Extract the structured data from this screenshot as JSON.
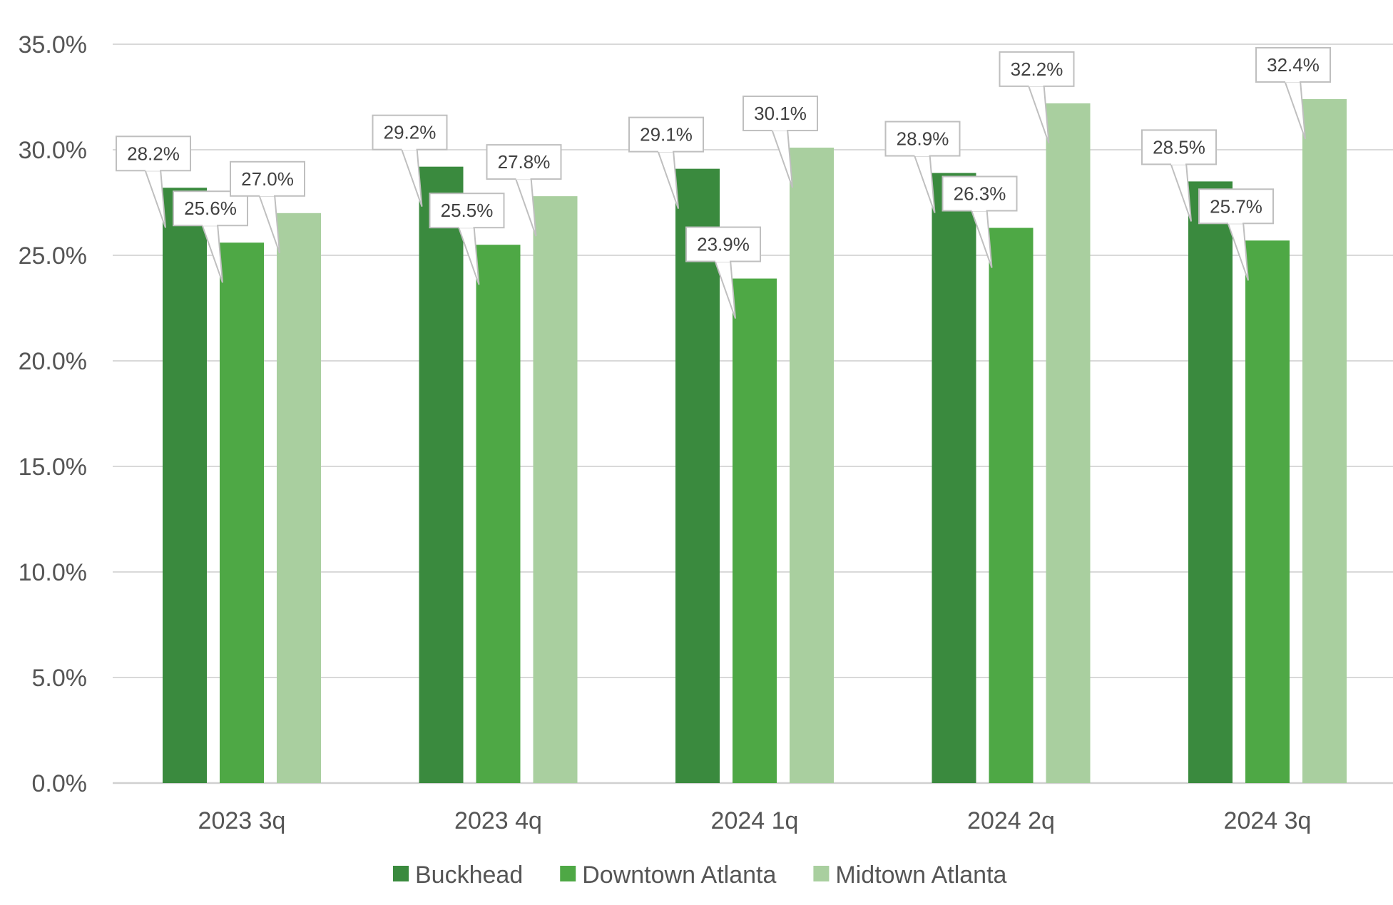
{
  "chart_data": {
    "type": "bar",
    "categories": [
      "2023 3q",
      "2023 4q",
      "2024 1q",
      "2024 2q",
      "2024 3q"
    ],
    "series": [
      {
        "name": "Buckhead",
        "color": "#3a8a3e",
        "values": [
          28.2,
          29.2,
          29.1,
          28.9,
          28.5
        ],
        "labels": [
          "28.2%",
          "29.2%",
          "29.1%",
          "28.9%",
          "28.5%"
        ]
      },
      {
        "name": "Downtown Atlanta",
        "color": "#4ea845",
        "values": [
          25.6,
          25.5,
          23.9,
          26.3,
          25.7
        ],
        "labels": [
          "25.6%",
          "25.5%",
          "23.9%",
          "26.3%",
          "25.7%"
        ]
      },
      {
        "name": "Midtown Atlanta",
        "color": "#a9cf9f",
        "values": [
          27.0,
          27.8,
          30.1,
          32.2,
          32.4
        ],
        "labels": [
          "27.0%",
          "27.8%",
          "30.1%",
          "32.2%",
          "32.4%"
        ]
      }
    ],
    "yticks": [
      "0.0%",
      "5.0%",
      "10.0%",
      "15.0%",
      "20.0%",
      "25.0%",
      "30.0%",
      "35.0%"
    ],
    "ylim": [
      0,
      35
    ],
    "grid": true,
    "legend_position": "bottom",
    "data_labels": "callouts"
  }
}
